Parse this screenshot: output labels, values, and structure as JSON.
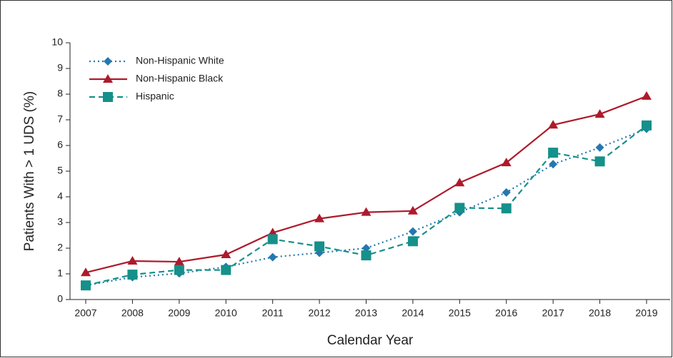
{
  "chart_data": {
    "type": "line",
    "xlabel": "Calendar Year",
    "ylabel": "Patients With > 1 UDS (%)",
    "categories": [
      "2007",
      "2008",
      "2009",
      "2010",
      "2011",
      "2012",
      "2013",
      "2014",
      "2015",
      "2016",
      "2017",
      "2018",
      "2019"
    ],
    "series": [
      {
        "name": "Non-Hispanic White",
        "color": "#2677b0",
        "line_style": "dotted",
        "marker": "diamond",
        "values": [
          0.55,
          0.87,
          1.02,
          1.27,
          1.65,
          1.82,
          2.0,
          2.65,
          3.4,
          4.17,
          5.27,
          5.92,
          6.65
        ]
      },
      {
        "name": "Non-Hispanic Black",
        "color": "#ae1a2c",
        "line_style": "solid",
        "marker": "triangle",
        "values": [
          1.05,
          1.5,
          1.47,
          1.75,
          2.6,
          3.15,
          3.4,
          3.45,
          4.55,
          5.33,
          6.8,
          7.22,
          7.92
        ]
      },
      {
        "name": "Hispanic",
        "color": "#15908a",
        "line_style": "dashed",
        "marker": "square",
        "values": [
          0.55,
          0.97,
          1.15,
          1.15,
          2.35,
          2.07,
          1.72,
          2.27,
          3.57,
          3.55,
          5.72,
          5.38,
          6.78
        ]
      }
    ],
    "ylim": [
      0,
      10
    ],
    "yticks": [
      0,
      1,
      2,
      3,
      4,
      5,
      6,
      7,
      8,
      9,
      10
    ],
    "legend": "upper left"
  }
}
